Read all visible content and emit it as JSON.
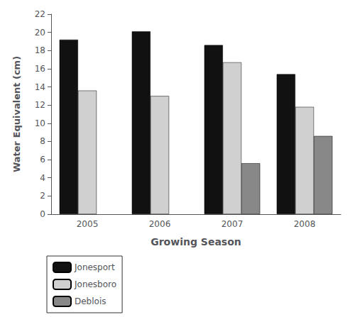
{
  "chart_data": {
    "type": "bar",
    "xlabel": "Growing Season",
    "ylabel": "Water Equivalent (cm)",
    "categories": [
      "2005",
      "2006",
      "2007",
      "2008"
    ],
    "series": [
      {
        "name": "Jonesport",
        "color": "#111111",
        "values": [
          19.2,
          20.1,
          18.6,
          15.4
        ]
      },
      {
        "name": "Jonesboro",
        "color": "#d0d0d0",
        "values": [
          13.6,
          13.0,
          16.7,
          11.8
        ]
      },
      {
        "name": "Deblois",
        "color": "#888888",
        "values": [
          null,
          null,
          5.6,
          8.6
        ]
      }
    ],
    "ylim": [
      0,
      22
    ],
    "yticks": [
      0,
      2,
      4,
      6,
      8,
      10,
      12,
      14,
      16,
      18,
      20,
      22
    ],
    "grid": false,
    "legend": "lower left"
  }
}
